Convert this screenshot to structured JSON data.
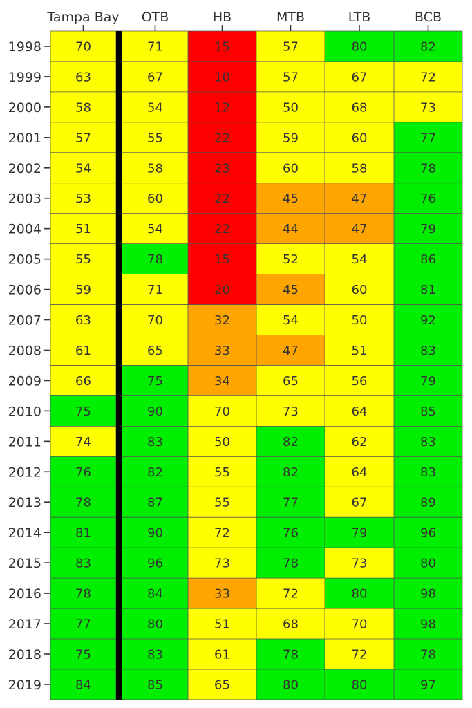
{
  "chart_data": {
    "type": "heatmap",
    "columns": [
      "Tampa Bay",
      "OTB",
      "HB",
      "MTB",
      "LTB",
      "BCB"
    ],
    "rows": [
      "1998",
      "1999",
      "2000",
      "2001",
      "2002",
      "2003",
      "2004",
      "2005",
      "2006",
      "2007",
      "2008",
      "2009",
      "2010",
      "2011",
      "2012",
      "2013",
      "2014",
      "2015",
      "2016",
      "2017",
      "2018",
      "2019"
    ],
    "values": [
      [
        70,
        71,
        15,
        57,
        80,
        82
      ],
      [
        63,
        67,
        10,
        57,
        67,
        72
      ],
      [
        58,
        54,
        12,
        50,
        68,
        73
      ],
      [
        57,
        55,
        22,
        59,
        60,
        77
      ],
      [
        54,
        58,
        23,
        60,
        58,
        78
      ],
      [
        53,
        60,
        22,
        45,
        47,
        76
      ],
      [
        51,
        54,
        22,
        44,
        47,
        79
      ],
      [
        55,
        78,
        15,
        52,
        54,
        86
      ],
      [
        59,
        71,
        20,
        45,
        60,
        81
      ],
      [
        63,
        70,
        32,
        54,
        50,
        92
      ],
      [
        61,
        65,
        33,
        47,
        51,
        83
      ],
      [
        66,
        75,
        34,
        65,
        56,
        79
      ],
      [
        75,
        90,
        70,
        73,
        64,
        85
      ],
      [
        74,
        83,
        50,
        82,
        62,
        83
      ],
      [
        76,
        82,
        55,
        82,
        64,
        83
      ],
      [
        78,
        87,
        55,
        77,
        67,
        89
      ],
      [
        81,
        90,
        72,
        76,
        79,
        96
      ],
      [
        83,
        96,
        73,
        78,
        73,
        80
      ],
      [
        78,
        84,
        33,
        72,
        80,
        98
      ],
      [
        77,
        80,
        51,
        68,
        70,
        98
      ],
      [
        75,
        83,
        61,
        78,
        72,
        78
      ],
      [
        84,
        85,
        65,
        80,
        80,
        97
      ]
    ],
    "colors": {
      "red": "#ff0000",
      "orange": "#ffa500",
      "yellow": "#ffff00",
      "green": "#00ee00",
      "separator": "#000000",
      "text": "#333333"
    },
    "color_bins": [
      {
        "min": 0,
        "max": 30,
        "color": "red"
      },
      {
        "min": 30,
        "max": 50,
        "color": "orange"
      },
      {
        "min": 50,
        "max": 75,
        "color": "yellow"
      },
      {
        "min": 75,
        "max": 100,
        "color": "green"
      }
    ],
    "separator_after_column": "Tampa Bay"
  }
}
